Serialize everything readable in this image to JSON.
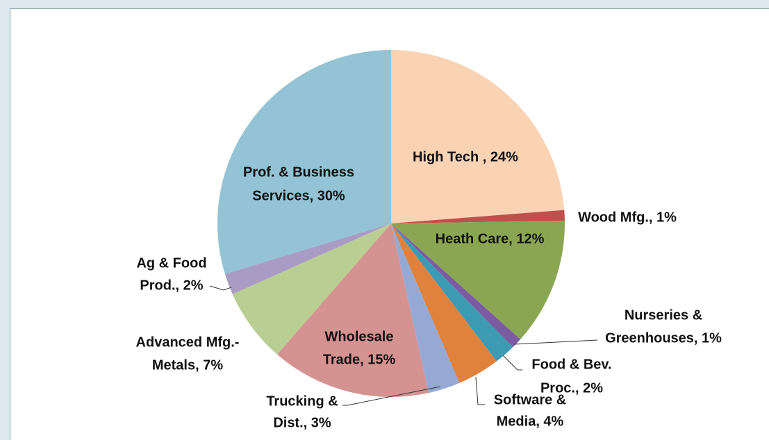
{
  "chart_data": {
    "type": "pie",
    "value_labels": [
      [
        "High Tech , 24%"
      ],
      [
        "Wood Mfg., 1%"
      ],
      [
        "Heath Care, 12%"
      ],
      [
        "Nurseries &",
        "Greenhouses, 1%"
      ],
      [
        "Food &  Bev.",
        "Proc., 2%"
      ],
      [
        "Software &",
        "Media, 4%"
      ],
      [
        "Trucking &",
        "Dist., 3%"
      ],
      [
        "Wholesale",
        "Trade, 15%"
      ],
      [
        "Advanced Mfg.-",
        "Metals, 7%"
      ],
      [
        "Ag & Food",
        "Prod., 2%"
      ],
      [
        "Prof. & Business",
        "Services, 30%"
      ]
    ],
    "values": [
      24,
      1,
      12,
      1,
      2,
      4,
      3,
      15,
      7,
      2,
      30
    ],
    "colors": [
      "#FAD3B4",
      "#C0504D",
      "#8BA652",
      "#7B5BA1",
      "#3C9BB3",
      "#E0823E",
      "#95A9D4",
      "#D49391",
      "#B9CE93",
      "#A99CC4",
      "#93C3D4"
    ]
  }
}
